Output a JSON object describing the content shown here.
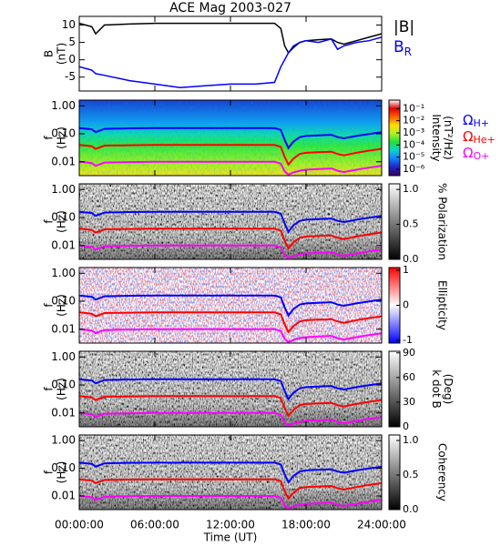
{
  "chart_data": [
    {
      "type": "line",
      "title": "ACE Mag 2003-027",
      "ylabel": [
        "B",
        "(nT)"
      ],
      "ylim": [
        -9,
        12.5
      ],
      "yticks": [
        -5,
        0,
        5,
        10
      ],
      "x": [
        0,
        1,
        1.3,
        2,
        4,
        6,
        8,
        10,
        12,
        14,
        15.5,
        16,
        16.3,
        16.6,
        17,
        17.5,
        18,
        19,
        20,
        20.5,
        21,
        22,
        23,
        24
      ],
      "series": [
        {
          "name": "|B|",
          "color": "#000000",
          "values": [
            10.5,
            9.5,
            7.5,
            10,
            10.3,
            10.5,
            10.5,
            10.5,
            10.5,
            10.5,
            10.5,
            9,
            4,
            2,
            3.5,
            5,
            5.5,
            5.8,
            6,
            5,
            4.5,
            5.5,
            6.5,
            7.5
          ]
        },
        {
          "name": "B",
          "name_subscript": "R",
          "color": "#0000ff",
          "values": [
            -2,
            -3,
            -4,
            -4.5,
            -6,
            -7,
            -8,
            -7.5,
            -7,
            -7,
            -6.5,
            -2,
            0,
            2,
            4,
            5,
            5.5,
            5,
            6,
            3,
            4,
            5,
            5.5,
            6.5
          ]
        }
      ]
    },
    {
      "type": "spectrogram",
      "ylabel": [
        "f",
        "(Hz)"
      ],
      "ylog": true,
      "ylim": [
        0.0032,
        1.6
      ],
      "yticks": [
        {
          "value": 1,
          "label": "1.00"
        },
        {
          "value": 0.1,
          "label": "0.10"
        },
        {
          "value": 0.01,
          "label": "0.01"
        }
      ],
      "clabel": [
        "Intensity",
        "(nT²/Hz)"
      ],
      "clog": true,
      "clim": [
        3e-07,
        0.5
      ],
      "cticks": [
        {
          "value": 0.1,
          "label": "10⁻¹"
        },
        {
          "value": 0.01,
          "label": "10⁻²"
        },
        {
          "value": 0.001,
          "label": "10⁻³"
        },
        {
          "value": 0.0001,
          "label": "10⁻⁴"
        },
        {
          "value": 1e-05,
          "label": "10⁻⁵"
        },
        {
          "value": 1e-06,
          "label": "10⁻⁶"
        }
      ],
      "colors": [
        "#3a0060",
        "#2020c0",
        "#1080ff",
        "#10d0d0",
        "#20e040",
        "#b0f020",
        "#ffe000",
        "#ff6000",
        "#e00000",
        "#ffffff"
      ],
      "x": [
        0,
        1,
        1.3,
        2,
        4,
        6,
        8,
        10,
        12,
        14,
        15.5,
        16,
        16.3,
        16.6,
        17,
        17.5,
        18,
        19,
        20,
        20.5,
        21,
        22,
        23,
        24
      ],
      "series": [
        {
          "name": "Ω",
          "name_subscript": "H+",
          "color": "#0000ff",
          "values": [
            0.16,
            0.145,
            0.115,
            0.15,
            0.157,
            0.16,
            0.16,
            0.16,
            0.16,
            0.16,
            0.16,
            0.137,
            0.061,
            0.031,
            0.053,
            0.076,
            0.084,
            0.088,
            0.092,
            0.076,
            0.069,
            0.084,
            0.099,
            0.114
          ]
        },
        {
          "name": "Ω",
          "name_subscript": "He+",
          "color": "#ff0000",
          "values": [
            0.04,
            0.036,
            0.029,
            0.038,
            0.039,
            0.04,
            0.04,
            0.04,
            0.04,
            0.04,
            0.04,
            0.034,
            0.015,
            0.008,
            0.013,
            0.019,
            0.021,
            0.022,
            0.023,
            0.019,
            0.017,
            0.021,
            0.025,
            0.029
          ]
        },
        {
          "name": "Ω",
          "name_subscript": "O+",
          "color": "#ff00ff",
          "values": [
            0.01,
            0.009,
            0.0072,
            0.0094,
            0.0098,
            0.01,
            0.01,
            0.01,
            0.01,
            0.01,
            0.01,
            0.0086,
            0.0045,
            0.0035,
            0.0042,
            0.0048,
            0.0052,
            0.0055,
            0.0058,
            0.0048,
            0.0043,
            0.0052,
            0.0062,
            0.0072
          ]
        }
      ]
    },
    {
      "type": "spectrogram",
      "ylabel": [
        "f",
        "(Hz)"
      ],
      "ylog": true,
      "ylim": [
        0.0032,
        1.6
      ],
      "yticks": [
        {
          "value": 1,
          "label": "1.00"
        },
        {
          "value": 0.1,
          "label": "0.10"
        },
        {
          "value": 0.01,
          "label": "0.01"
        }
      ],
      "clabel": [
        "% Polarization"
      ],
      "clim": [
        0,
        1.08
      ],
      "cticks": [
        {
          "value": 0,
          "label": "0.0"
        },
        {
          "value": 0.5,
          "label": "0.5"
        },
        {
          "value": 1,
          "label": "1.0"
        }
      ],
      "colors": [
        "#000000",
        "#ffffff"
      ]
    },
    {
      "type": "spectrogram",
      "ylabel": [
        "f",
        "(Hz)"
      ],
      "ylog": true,
      "ylim": [
        0.0032,
        1.6
      ],
      "yticks": [
        {
          "value": 1,
          "label": "1.00"
        },
        {
          "value": 0.1,
          "label": "0.10"
        },
        {
          "value": 0.01,
          "label": "0.01"
        }
      ],
      "clabel": [
        "Ellipticity"
      ],
      "clim": [
        -1.08,
        1.08
      ],
      "cticks": [
        -1,
        0,
        1
      ],
      "colors": [
        "#0000ff",
        "#ffffff",
        "#ff0000"
      ]
    },
    {
      "type": "spectrogram",
      "ylabel": [
        "f",
        "(Hz)"
      ],
      "ylog": true,
      "ylim": [
        0.0032,
        1.6
      ],
      "yticks": [
        {
          "value": 1,
          "label": "1.00"
        },
        {
          "value": 0.1,
          "label": "0.10"
        },
        {
          "value": 0.01,
          "label": "0.01"
        }
      ],
      "clabel": [
        "k dot B",
        "(Deg)"
      ],
      "clim": [
        0,
        92
      ],
      "cticks": [
        0,
        30,
        60,
        90
      ],
      "colors": [
        "#000000",
        "#ffffff"
      ]
    },
    {
      "type": "spectrogram",
      "ylabel": [
        "f",
        "(Hz)"
      ],
      "ylog": true,
      "ylim": [
        0.0032,
        1.6
      ],
      "yticks": [
        {
          "value": 1,
          "label": "1.00"
        },
        {
          "value": 0.1,
          "label": "0.10"
        },
        {
          "value": 0.01,
          "label": "0.01"
        }
      ],
      "clabel": [
        "Coherency"
      ],
      "clim": [
        0,
        1.08
      ],
      "cticks": [
        {
          "value": 0,
          "label": "0.0"
        },
        {
          "value": 0.5,
          "label": "0.5"
        },
        {
          "value": 1,
          "label": "1.0"
        }
      ],
      "colors": [
        "#000000",
        "#ffffff"
      ],
      "xlim": [
        0,
        24
      ],
      "xlabel": "Time (UT)",
      "xticks": [
        {
          "value": 0,
          "label": "00:00:00"
        },
        {
          "value": 6,
          "label": "06:00:00"
        },
        {
          "value": 12,
          "label": "12:00:00"
        },
        {
          "value": 18,
          "label": "18:00:00"
        },
        {
          "value": 24,
          "label": "24:00:00"
        }
      ]
    }
  ]
}
